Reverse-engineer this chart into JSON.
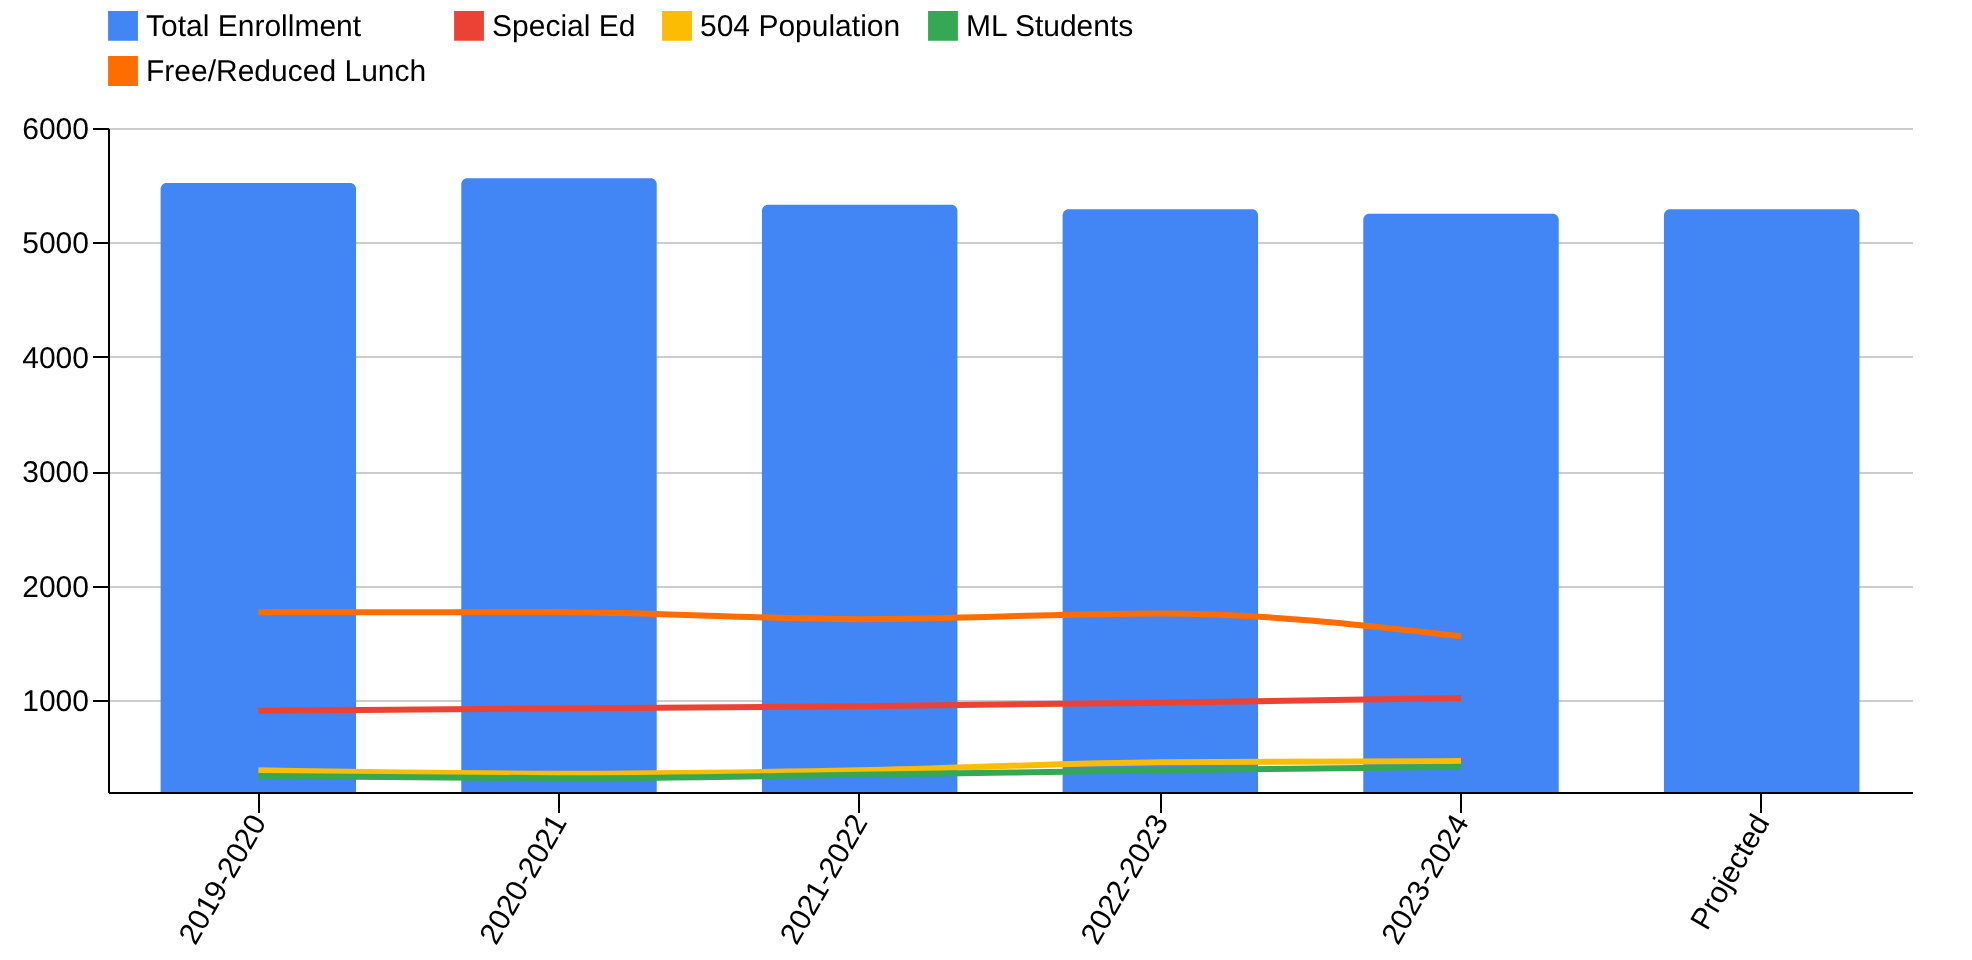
{
  "chart_data": {
    "type": "bar",
    "categories": [
      "2019-2020",
      "2020-2021",
      "2021-2022",
      "2022-2023",
      "2023-2024",
      "Projected"
    ],
    "series": [
      {
        "name": "Total Enrollment",
        "color": "#4285f4",
        "values": [
          5520,
          5560,
          5330,
          5290,
          5250,
          5290
        ]
      },
      {
        "name": "Special Ed",
        "type": "line",
        "color": "#ea4335",
        "values": [
          910,
          930,
          950,
          980,
          1020,
          null
        ]
      },
      {
        "name": "504 Population",
        "type": "line",
        "color": "#fbbc04",
        "values": [
          390,
          360,
          390,
          460,
          470,
          null
        ]
      },
      {
        "name": "ML Students",
        "type": "line",
        "color": "#34a853",
        "values": [
          340,
          320,
          350,
          390,
          420,
          null
        ]
      },
      {
        "name": "Free/Reduced Lunch",
        "type": "line",
        "color": "#ff6d01",
        "values": [
          1770,
          1770,
          1710,
          1760,
          1560,
          null
        ]
      }
    ],
    "ylim": [
      200,
      6000
    ],
    "yticks": [
      1000,
      2000,
      3000,
      4000,
      5000,
      6000
    ],
    "grid": "y",
    "legend": "top"
  }
}
